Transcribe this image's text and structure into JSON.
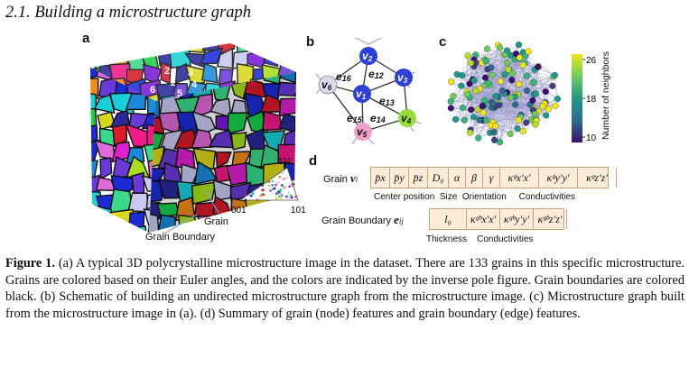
{
  "section_title": "2.1. Building a microstructure graph",
  "panels": {
    "a": {
      "label": "a",
      "grain_numbers": [
        "2",
        "3",
        "1",
        "4",
        "5",
        "6"
      ],
      "grain_label": "Grain",
      "grain_boundary_label": "Grain Boundary",
      "pole_figure": {
        "top": "111",
        "left": "001",
        "right": "101"
      }
    },
    "b": {
      "label": "b",
      "nodes": [
        "v",
        "v",
        "v",
        "v",
        "v",
        "v"
      ],
      "node_subscripts": [
        "1",
        "2",
        "3",
        "4",
        "5",
        "6"
      ],
      "edges": [
        "e",
        "e",
        "e",
        "e",
        "e"
      ],
      "edge_subscripts": [
        "12",
        "13",
        "14",
        "15",
        "16"
      ]
    },
    "c": {
      "label": "c",
      "colorbar_ticks": [
        "26",
        "18",
        "10"
      ],
      "colorbar_label": "Number of neighbors",
      "colors": {
        "high": "#f2e51a",
        "mid": "#1f9a8a",
        "low": "#3b0f70"
      }
    },
    "d": {
      "label": "d",
      "grain_row_label": "Grain",
      "grain_row_symbol": "v",
      "grain_row_sub": "i",
      "grain_features": [
        "p̄x",
        "p̄y",
        "p̄z",
        "D₀",
        "α",
        "β",
        "γ",
        "κᵍx′x′",
        "κᵍy′y′",
        "κᵍz′z′"
      ],
      "grain_groups": [
        "Center position",
        "Size",
        "Orientation",
        "Conductivities"
      ],
      "boundary_row_label": "Grain Boundary",
      "boundary_row_symbol": "e",
      "boundary_row_sub": "ij",
      "boundary_features": [
        "l₀",
        "κᵍᵇx′x′",
        "κᵍᵇy′y′",
        "κᵍᵇz′z′"
      ],
      "boundary_groups": [
        "Thickness",
        "Conductivities"
      ]
    }
  },
  "caption": {
    "lead": "Figure 1.",
    "text": " (a) A typical 3D polycrystalline microstructure image in the dataset. There are 133 grains in this specific microstructure. Grains are colored based on their Euler angles, and the colors are indicated by the inverse pole figure. Grain boundaries are colored black. (b) Schematic of building an undirected microstructure graph from the microstructure image. (c) Microstructure graph built from the microstructure image in (a). (d) Summary of grain (node) features and grain boundary (edge) features."
  }
}
